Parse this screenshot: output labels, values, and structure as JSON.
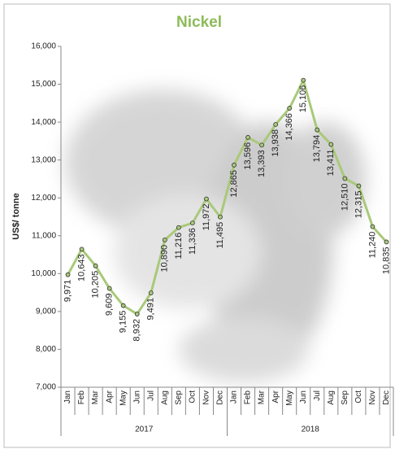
{
  "chart_data": {
    "type": "line",
    "title": "Nickel",
    "y_label": "US$/ tonne",
    "categories": [
      "Jan",
      "Feb",
      "Mar",
      "Apr",
      "May",
      "Jun",
      "Jul",
      "Aug",
      "Sep",
      "Oct",
      "Nov",
      "Dec",
      "Jan",
      "Feb",
      "Mar",
      "Apr",
      "May",
      "Jun",
      "Jul",
      "Aug",
      "Sep",
      "Oct",
      "Nov",
      "Dec"
    ],
    "category_groups": [
      "2017",
      "2018"
    ],
    "series": [
      {
        "name": "Nickel",
        "color": "#a9c97a",
        "values": [
          9971,
          10643,
          10205,
          9609,
          9155,
          8932,
          9491,
          10890,
          11216,
          11336,
          11972,
          11495,
          12865,
          13596,
          13393,
          13938,
          14366,
          15106,
          13794,
          13411,
          12510,
          12315,
          11240,
          10835
        ],
        "value_labels": [
          "9,971",
          "10,643",
          "10,205",
          "9,609",
          "9,155",
          "8,932",
          "9,491",
          "10,890",
          "11,216",
          "11,336",
          "11,972",
          "11,495",
          "12,865",
          "13,596",
          "13,393",
          "13,938",
          "14,366",
          "15,106",
          "13,794",
          "13,411",
          "12,510",
          "12,315",
          "11,240",
          "10,835"
        ]
      }
    ],
    "ylim": [
      7000,
      16000
    ],
    "yticks": [
      {
        "value": 7000,
        "label": "7,000"
      },
      {
        "value": 8000,
        "label": "8,000"
      },
      {
        "value": 9000,
        "label": "9,000"
      },
      {
        "value": 10000,
        "label": "10,000"
      },
      {
        "value": 11000,
        "label": "11,000"
      },
      {
        "value": 12000,
        "label": "12,000"
      },
      {
        "value": 13000,
        "label": "13,000"
      },
      {
        "value": 14000,
        "label": "14,000"
      },
      {
        "value": 15000,
        "label": "15,000"
      },
      {
        "value": 16000,
        "label": "16,000"
      }
    ],
    "grid": false
  }
}
